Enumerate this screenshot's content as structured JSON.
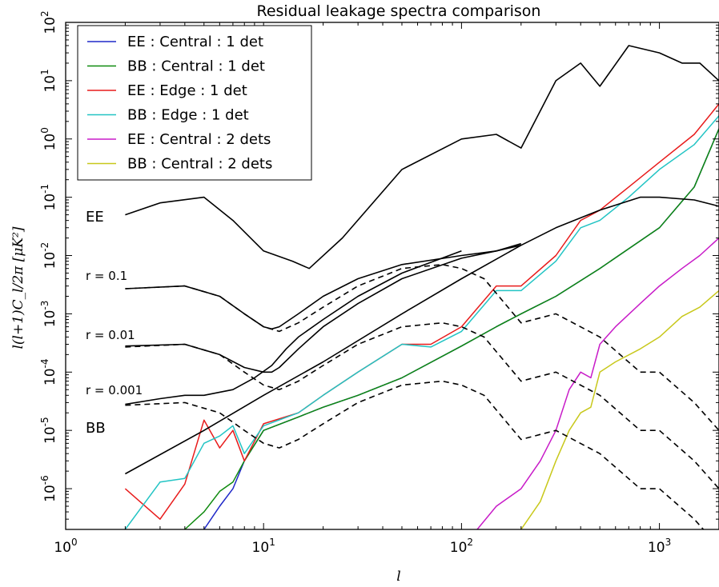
{
  "chart_data": {
    "type": "line",
    "title": "Residual leakage spectra comparison",
    "xlabel": "l",
    "ylabel": "l(l+1)C_l/2π [μK²]",
    "xscale": "log",
    "yscale": "log",
    "xlim": [
      1,
      2000
    ],
    "ylim": [
      2e-07,
      100
    ],
    "xticks": [
      {
        "base": "10",
        "exp": "0"
      },
      {
        "base": "10",
        "exp": "1"
      },
      {
        "base": "10",
        "exp": "2"
      },
      {
        "base": "10",
        "exp": "3"
      }
    ],
    "yticks": [
      {
        "base": "10",
        "exp": "-6"
      },
      {
        "base": "10",
        "exp": "-5"
      },
      {
        "base": "10",
        "exp": "-4"
      },
      {
        "base": "10",
        "exp": "-3"
      },
      {
        "base": "10",
        "exp": "-2"
      },
      {
        "base": "10",
        "exp": "-1"
      },
      {
        "base": "10",
        "exp": "0"
      },
      {
        "base": "10",
        "exp": "1"
      },
      {
        "base": "10",
        "exp": "2"
      }
    ],
    "legend_position": "top-left",
    "annotations": [
      "EE",
      "r = 0.1",
      "r = 0.01",
      "r = 0.001",
      "BB"
    ],
    "series": [
      {
        "name": "EE : Central : 1 det",
        "color": "#1f28c8",
        "legend": true,
        "x": [
          5,
          6,
          7,
          8,
          10,
          15,
          20,
          30,
          50,
          100,
          150,
          200,
          300,
          500,
          1000,
          1500,
          2000
        ],
        "y": [
          2e-07,
          5e-07,
          1e-06,
          3e-06,
          1e-05,
          1.7e-05,
          2.5e-05,
          4e-05,
          8e-05,
          0.00028,
          0.0006,
          0.001,
          0.002,
          0.006,
          0.03,
          0.15,
          1.5
        ]
      },
      {
        "name": "BB : Central : 1 det",
        "color": "#0f8a0f",
        "legend": true,
        "x": [
          4,
          5,
          6,
          7,
          8,
          10,
          15,
          20,
          30,
          50,
          100,
          150,
          200,
          300,
          500,
          1000,
          1500,
          2000
        ],
        "y": [
          2e-07,
          4e-07,
          9e-07,
          1.3e-06,
          3e-06,
          1e-05,
          1.7e-05,
          2.5e-05,
          4e-05,
          8e-05,
          0.00028,
          0.0006,
          0.001,
          0.002,
          0.006,
          0.03,
          0.15,
          1.5
        ]
      },
      {
        "name": "EE : Edge : 1 det",
        "color": "#e81b1b",
        "legend": true,
        "x": [
          2,
          3,
          4,
          5,
          6,
          7,
          8,
          10,
          15,
          20,
          30,
          50,
          70,
          100,
          150,
          200,
          300,
          400,
          500,
          700,
          1000,
          1500,
          2000
        ],
        "y": [
          1e-06,
          3e-07,
          1.2e-06,
          1.5e-05,
          5e-06,
          1e-05,
          3e-06,
          1.3e-05,
          2e-05,
          4e-05,
          0.0001,
          0.0003,
          0.0003,
          0.0006,
          0.003,
          0.003,
          0.01,
          0.04,
          0.06,
          0.15,
          0.4,
          1.2,
          4
        ]
      },
      {
        "name": "BB : Edge : 1 det",
        "color": "#22c4c4",
        "legend": true,
        "x": [
          2,
          3,
          4,
          5,
          6,
          7,
          8,
          10,
          15,
          20,
          30,
          50,
          70,
          100,
          150,
          200,
          300,
          400,
          500,
          700,
          1000,
          1500,
          2000
        ],
        "y": [
          2e-07,
          1.3e-06,
          1.5e-06,
          6e-06,
          8e-06,
          1.2e-05,
          4e-06,
          1.2e-05,
          2e-05,
          4e-05,
          0.0001,
          0.0003,
          0.00027,
          0.0005,
          0.0025,
          0.0025,
          0.008,
          0.03,
          0.04,
          0.1,
          0.3,
          0.8,
          2.5
        ]
      },
      {
        "name": "EE : Central : 2 dets",
        "color": "#c81bc8",
        "legend": true,
        "x": [
          120,
          150,
          200,
          250,
          300,
          350,
          400,
          450,
          500,
          600,
          800,
          1000,
          1300,
          1600,
          2000
        ],
        "y": [
          2e-07,
          5e-07,
          1e-06,
          3e-06,
          1e-05,
          5e-05,
          0.0001,
          8e-05,
          0.0003,
          0.0006,
          0.0015,
          0.003,
          0.006,
          0.01,
          0.02
        ]
      },
      {
        "name": "BB : Central : 2 dets",
        "color": "#c8c81b",
        "legend": true,
        "x": [
          200,
          250,
          300,
          350,
          400,
          450,
          500,
          600,
          800,
          1000,
          1300,
          1600,
          2000
        ],
        "y": [
          2e-07,
          6e-07,
          3e-06,
          1e-05,
          2e-05,
          2.5e-05,
          0.0001,
          0.00015,
          0.00025,
          0.0004,
          0.0009,
          0.0013,
          0.0025
        ]
      },
      {
        "name": "",
        "color": "#000000",
        "legend": false,
        "style": "solid",
        "x": [
          2,
          3,
          5,
          7,
          10,
          14,
          17,
          25,
          50,
          100,
          150,
          200,
          300,
          400,
          500,
          700,
          1000,
          1300,
          1600,
          2000
        ],
        "y": [
          0.05,
          0.08,
          0.1,
          0.04,
          0.012,
          0.008,
          0.006,
          0.02,
          0.3,
          1.0,
          1.2,
          0.7,
          10,
          20,
          8,
          40,
          30,
          20,
          20,
          10
        ]
      },
      {
        "name": "",
        "color": "#000000",
        "legend": false,
        "style": "solid",
        "x": [
          2,
          5,
          10,
          20,
          50,
          100,
          200,
          300,
          500,
          800,
          1000,
          1500,
          2000
        ],
        "y": [
          1.8e-06,
          1e-05,
          4e-05,
          0.00015,
          0.001,
          0.004,
          0.015,
          0.03,
          0.06,
          0.1,
          0.1,
          0.09,
          0.07
        ]
      },
      {
        "name": "",
        "color": "#000000",
        "legend": false,
        "style": "solid",
        "x": [
          2,
          4,
          6,
          8,
          10,
          11,
          12,
          15,
          20,
          30,
          50,
          100,
          150,
          200
        ],
        "y": [
          0.0027,
          0.003,
          0.002,
          0.001,
          0.0006,
          0.00055,
          0.0006,
          0.001,
          0.002,
          0.004,
          0.007,
          0.01,
          0.012,
          0.016
        ]
      },
      {
        "name": "",
        "color": "#000000",
        "legend": false,
        "style": "solid",
        "x": [
          2,
          4,
          6,
          8,
          10,
          11,
          12,
          15,
          20,
          30,
          50,
          100,
          150,
          200
        ],
        "y": [
          0.00028,
          0.0003,
          0.0002,
          0.00012,
          0.0001,
          0.0001,
          0.00012,
          0.00025,
          0.0006,
          0.0015,
          0.004,
          0.009,
          0.012,
          0.015
        ]
      },
      {
        "name": "",
        "color": "#000000",
        "legend": false,
        "style": "solid",
        "x": [
          2,
          3,
          4,
          5,
          7,
          9,
          11,
          13,
          15,
          20,
          30,
          50,
          100
        ],
        "y": [
          2.8e-05,
          3.5e-05,
          4e-05,
          4e-05,
          5e-05,
          8e-05,
          0.00013,
          0.00025,
          0.0004,
          0.0008,
          0.002,
          0.005,
          0.012
        ]
      },
      {
        "name": "",
        "color": "#000000",
        "legend": false,
        "style": "dashed",
        "x": [
          2,
          4,
          6,
          8,
          10,
          12,
          15,
          20,
          30,
          50,
          80,
          100,
          130,
          200,
          300,
          500,
          800,
          1000,
          1500,
          2000
        ],
        "y": [
          0.0027,
          0.003,
          0.002,
          0.001,
          0.0006,
          0.0005,
          0.0007,
          0.0013,
          0.003,
          0.006,
          0.007,
          0.006,
          0.004,
          0.0007,
          0.001,
          0.0004,
          0.0001,
          0.0001,
          3e-05,
          1e-05
        ]
      },
      {
        "name": "",
        "color": "#000000",
        "legend": false,
        "style": "dashed",
        "x": [
          2,
          4,
          6,
          8,
          10,
          12,
          15,
          20,
          30,
          50,
          80,
          100,
          130,
          200,
          300,
          500,
          800,
          1000,
          1500,
          2000
        ],
        "y": [
          0.00027,
          0.0003,
          0.0002,
          0.0001,
          6e-05,
          5e-05,
          7e-05,
          0.00013,
          0.0003,
          0.0006,
          0.0007,
          0.0006,
          0.0004,
          7e-05,
          0.0001,
          4e-05,
          1e-05,
          1e-05,
          3e-06,
          1e-06
        ]
      },
      {
        "name": "",
        "color": "#000000",
        "legend": false,
        "style": "dashed",
        "x": [
          2,
          4,
          6,
          8,
          10,
          12,
          15,
          20,
          30,
          50,
          80,
          100,
          130,
          200,
          300,
          500,
          800,
          1000,
          1500,
          2000
        ],
        "y": [
          2.7e-05,
          3e-05,
          2e-05,
          1e-05,
          6e-06,
          5e-06,
          7e-06,
          1.3e-05,
          3e-05,
          6e-05,
          7e-05,
          6e-05,
          4e-05,
          7e-06,
          1e-05,
          4e-06,
          1e-06,
          1e-06,
          3e-07,
          1e-07
        ]
      }
    ]
  }
}
